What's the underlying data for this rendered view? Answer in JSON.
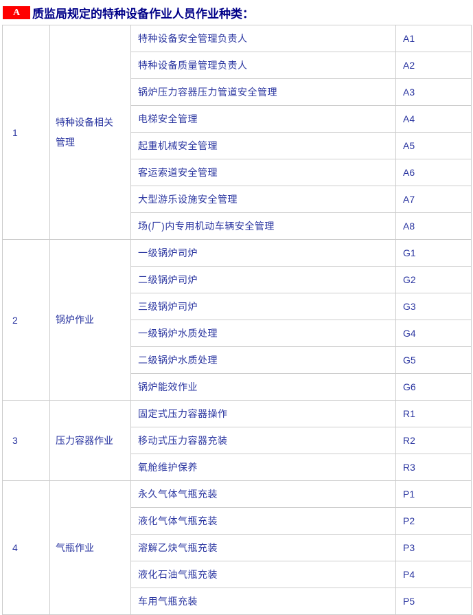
{
  "header": {
    "badge": "A",
    "title": "质监局规定的特种设备作业人员作业种类："
  },
  "colors": {
    "badge_bg": "#ff0000",
    "badge_text": "#ffffff",
    "title_text": "#000088",
    "body_text": "#2a35a0",
    "border": "#cccccc"
  },
  "table": {
    "groups": [
      {
        "no": "1",
        "category": "特种设备相关管理",
        "rows": [
          {
            "job": "特种设备安全管理负责人",
            "code": "A1"
          },
          {
            "job": "特种设备质量管理负责人",
            "code": "A2"
          },
          {
            "job": "锅炉压力容器压力管道安全管理",
            "code": "A3"
          },
          {
            "job": "电梯安全管理",
            "code": "A4"
          },
          {
            "job": "起重机械安全管理",
            "code": "A5"
          },
          {
            "job": "客运索道安全管理",
            "code": "A6"
          },
          {
            "job": "大型游乐设施安全管理",
            "code": "A7"
          },
          {
            "job": "场(厂)内专用机动车辆安全管理",
            "code": "A8"
          }
        ]
      },
      {
        "no": "2",
        "category": "锅炉作业",
        "rows": [
          {
            "job": "一级锅炉司炉",
            "code": "G1"
          },
          {
            "job": "二级锅炉司炉",
            "code": "G2"
          },
          {
            "job": "三级锅炉司炉",
            "code": "G3"
          },
          {
            "job": "一级锅炉水质处理",
            "code": "G4"
          },
          {
            "job": "二级锅炉水质处理",
            "code": "G5"
          },
          {
            "job": "锅炉能效作业",
            "code": "G6"
          }
        ]
      },
      {
        "no": "3",
        "category": "压力容器作业",
        "rows": [
          {
            "job": "固定式压力容器操作",
            "code": "R1"
          },
          {
            "job": "移动式压力容器充装",
            "code": "R2"
          },
          {
            "job": "氧舱维护保养",
            "code": "R3"
          }
        ]
      },
      {
        "no": "4",
        "category": "气瓶作业",
        "rows": [
          {
            "job": "永久气体气瓶充装",
            "code": "P1"
          },
          {
            "job": "液化气体气瓶充装",
            "code": "P2"
          },
          {
            "job": "溶解乙炔气瓶充装",
            "code": "P3"
          },
          {
            "job": "液化石油气瓶充装",
            "code": "P4"
          },
          {
            "job": "车用气瓶充装",
            "code": "P5"
          }
        ]
      }
    ]
  }
}
